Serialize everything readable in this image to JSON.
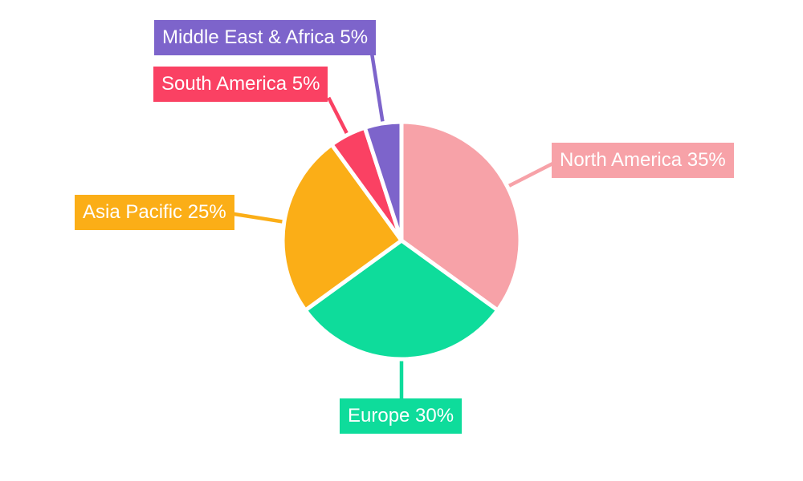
{
  "chart_data": {
    "type": "pie",
    "title": "",
    "start_angle_deg": 0,
    "direction": "clockwise",
    "categories": [
      "North America",
      "Europe",
      "Asia Pacific",
      "South America",
      "Middle East & Africa"
    ],
    "values": [
      35,
      30,
      25,
      5,
      5
    ],
    "unit": "%",
    "slices": [
      {
        "label": "North America",
        "value": 35,
        "display": "North America 35%",
        "color": "#F7A2A8"
      },
      {
        "label": "Europe",
        "value": 30,
        "display": "Europe 30%",
        "color": "#0EDC9B"
      },
      {
        "label": "Asia Pacific",
        "value": 25,
        "display": "Asia Pacific 25%",
        "color": "#FBAE17"
      },
      {
        "label": "South America",
        "value": 5,
        "display": "South America 5%",
        "color": "#FA4163"
      },
      {
        "label": "Middle East & Africa",
        "value": 5,
        "display": "Middle East & Africa 5%",
        "color": "#7D64CB"
      }
    ],
    "background_color": "#FFFFFF",
    "label_text_color": "#FFFFFF",
    "legend": "none",
    "labels_style": "colored callout boxes with leader lines"
  }
}
